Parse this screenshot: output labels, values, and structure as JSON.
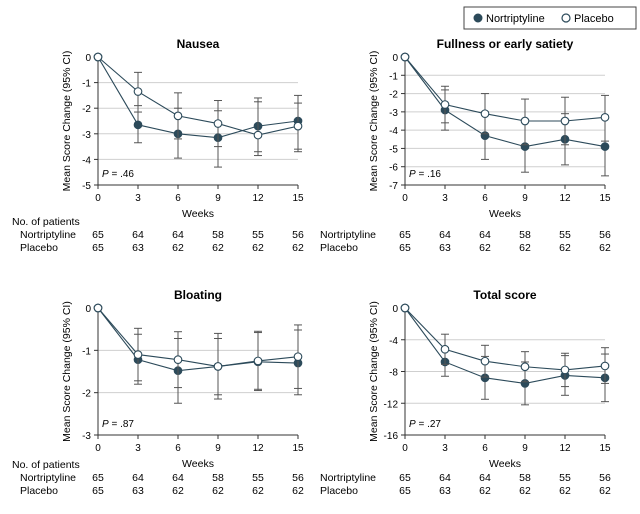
{
  "legend": {
    "placement": "top-right",
    "entries": [
      {
        "name": "Nortriptyline",
        "marker": "filled-circle",
        "color": "#2c4a5a"
      },
      {
        "name": "Placebo",
        "marker": "open-circle",
        "color": "#2c4a5a"
      }
    ]
  },
  "colors": {
    "nortriptyline": "#2c4a5a",
    "placebo_fill": "#ffffff",
    "grid": "#cfcfcf",
    "axis": "#333333",
    "errorbar": "#555555"
  },
  "patients_table": {
    "header": "No. of patients",
    "rows": [
      {
        "label": "Nortriptyline",
        "values": [
          65,
          64,
          64,
          58,
          55,
          56
        ]
      },
      {
        "label": "Placebo",
        "values": [
          65,
          63,
          62,
          62,
          62,
          62
        ]
      }
    ]
  },
  "chart_data": [
    {
      "type": "line",
      "title": "Nausea",
      "xlabel": "Weeks",
      "ylabel": "Mean Score Change (95% CI)",
      "x": [
        0,
        3,
        6,
        9,
        12,
        15
      ],
      "xticks": [
        0,
        3,
        6,
        9,
        12,
        15
      ],
      "ylim": [
        -5,
        0
      ],
      "yticks": [
        0,
        -1,
        -2,
        -3,
        -4,
        -5
      ],
      "grid": true,
      "p_value": "P = .46",
      "series": [
        {
          "name": "Nortriptyline",
          "values": [
            0,
            -2.65,
            -3.0,
            -3.15,
            -2.7,
            -2.5
          ],
          "ci_low": [
            0,
            -3.35,
            -3.95,
            -4.3,
            -3.7,
            -3.7
          ],
          "ci_high": [
            0,
            -1.9,
            -2.0,
            -2.1,
            -1.75,
            -1.5
          ]
        },
        {
          "name": "Placebo",
          "values": [
            0,
            -1.35,
            -2.3,
            -2.6,
            -3.05,
            -2.7
          ],
          "ci_low": [
            0,
            -2.15,
            -3.2,
            -3.5,
            -3.85,
            -3.6
          ],
          "ci_high": [
            0,
            -0.6,
            -1.4,
            -1.7,
            -1.6,
            -1.8
          ]
        }
      ]
    },
    {
      "type": "line",
      "title": "Fullness or early satiety",
      "xlabel": "Weeks",
      "ylabel": "Mean Score Change (95% CI)",
      "x": [
        0,
        3,
        6,
        9,
        12,
        15
      ],
      "xticks": [
        0,
        3,
        6,
        9,
        12,
        15
      ],
      "ylim": [
        -7,
        0
      ],
      "yticks": [
        0,
        -1,
        -2,
        -3,
        -4,
        -5,
        -6,
        -7
      ],
      "grid": true,
      "p_value": "P = .16",
      "series": [
        {
          "name": "Nortriptyline",
          "values": [
            0,
            -2.9,
            -4.3,
            -4.9,
            -4.5,
            -4.9
          ],
          "ci_low": [
            0,
            -4.0,
            -5.6,
            -6.3,
            -5.9,
            -6.5
          ],
          "ci_high": [
            0,
            -1.8,
            -3.0,
            -3.5,
            -3.1,
            -3.3
          ]
        },
        {
          "name": "Placebo",
          "values": [
            0,
            -2.6,
            -3.1,
            -3.5,
            -3.5,
            -3.3
          ],
          "ci_low": [
            0,
            -3.6,
            -4.2,
            -4.8,
            -4.8,
            -4.6
          ],
          "ci_high": [
            0,
            -1.6,
            -2.0,
            -2.3,
            -2.2,
            -2.1
          ]
        }
      ]
    },
    {
      "type": "line",
      "title": "Bloating",
      "xlabel": "Weeks",
      "ylabel": "Mean Score Change (95% CI)",
      "x": [
        0,
        3,
        6,
        9,
        12,
        15
      ],
      "xticks": [
        0,
        3,
        6,
        9,
        12,
        15
      ],
      "ylim": [
        -3,
        0
      ],
      "yticks": [
        0,
        -1,
        -2,
        -3
      ],
      "grid": true,
      "p_value": "P = .87",
      "series": [
        {
          "name": "Nortriptyline",
          "values": [
            0,
            -1.22,
            -1.48,
            -1.38,
            -1.27,
            -1.3
          ],
          "ci_low": [
            0,
            -1.8,
            -2.25,
            -2.15,
            -1.95,
            -2.05
          ],
          "ci_high": [
            0,
            -0.62,
            -0.72,
            -0.6,
            -0.58,
            -0.52
          ]
        },
        {
          "name": "Placebo",
          "values": [
            0,
            -1.1,
            -1.22,
            -1.38,
            -1.25,
            -1.15
          ],
          "ci_low": [
            0,
            -1.72,
            -1.88,
            -2.05,
            -1.92,
            -1.9
          ],
          "ci_high": [
            0,
            -0.48,
            -0.56,
            -0.72,
            -0.55,
            -0.4
          ]
        }
      ]
    },
    {
      "type": "line",
      "title": "Total score",
      "xlabel": "Weeks",
      "ylabel": "Mean Score Change (95% CI)",
      "x": [
        0,
        3,
        6,
        9,
        12,
        15
      ],
      "xticks": [
        0,
        3,
        6,
        9,
        12,
        15
      ],
      "ylim": [
        -16,
        0
      ],
      "yticks": [
        0,
        -4,
        -8,
        -12,
        -16
      ],
      "grid": true,
      "p_value": "P = .27",
      "series": [
        {
          "name": "Nortriptyline",
          "values": [
            0,
            -6.8,
            -8.8,
            -9.5,
            -8.5,
            -8.8
          ],
          "ci_low": [
            0,
            -8.6,
            -11.5,
            -12.2,
            -11.0,
            -11.8
          ],
          "ci_high": [
            0,
            -5.0,
            -6.1,
            -6.8,
            -6.0,
            -5.8
          ]
        },
        {
          "name": "Placebo",
          "values": [
            0,
            -5.2,
            -6.7,
            -7.4,
            -7.8,
            -7.3
          ],
          "ci_low": [
            0,
            -7.1,
            -8.7,
            -9.3,
            -9.9,
            -9.5
          ],
          "ci_high": [
            0,
            -3.3,
            -4.7,
            -5.5,
            -5.7,
            -5.0
          ]
        }
      ]
    }
  ]
}
